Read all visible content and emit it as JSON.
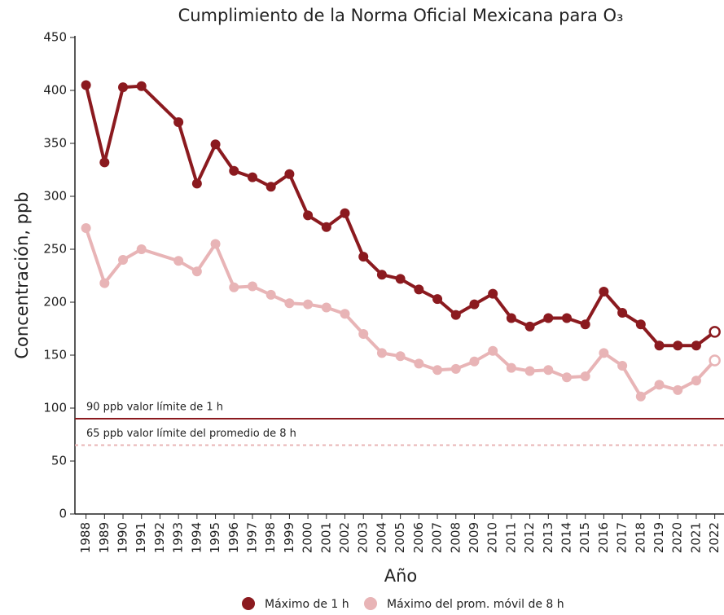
{
  "chart_data": {
    "type": "line",
    "title": "Cumplimiento de la Norma Oficial Mexicana para O₃",
    "x_label": "Año",
    "y_label": "Concentración, ppb",
    "x": [
      1988,
      1989,
      1990,
      1991,
      1993,
      1994,
      1995,
      1996,
      1997,
      1998,
      1999,
      2000,
      2001,
      2002,
      2003,
      2004,
      2005,
      2006,
      2007,
      2008,
      2009,
      2010,
      2011,
      2012,
      2013,
      2014,
      2015,
      2016,
      2017,
      2018,
      2019,
      2020,
      2021,
      2022
    ],
    "series": [
      {
        "name": "Máximo de 1 h",
        "color": "#8b1a1f",
        "values": [
          405,
          332,
          403,
          404,
          370,
          312,
          349,
          324,
          318,
          309,
          321,
          282,
          271,
          284,
          243,
          226,
          222,
          212,
          203,
          188,
          198,
          208,
          185,
          177,
          185,
          185,
          179,
          210,
          190,
          179,
          159,
          159,
          159,
          172
        ]
      },
      {
        "name": "Máximo del prom. móvil de 8 h",
        "color": "#e8b4b6",
        "values": [
          270,
          218,
          240,
          250,
          239,
          229,
          255,
          214,
          215,
          207,
          199,
          198,
          195,
          189,
          170,
          152,
          149,
          142,
          136,
          137,
          144,
          154,
          138,
          135,
          136,
          129,
          130,
          152,
          140,
          111,
          122,
          117,
          126,
          145
        ]
      }
    ],
    "xlim": [
      1987.4,
      2022.5
    ],
    "xticks": [
      1988,
      1989,
      1990,
      1991,
      1992,
      1993,
      1994,
      1995,
      1996,
      1997,
      1998,
      1999,
      2000,
      2001,
      2002,
      2003,
      2004,
      2005,
      2006,
      2007,
      2008,
      2009,
      2010,
      2011,
      2012,
      2013,
      2014,
      2015,
      2016,
      2017,
      2018,
      2019,
      2020,
      2021,
      2022
    ],
    "ylim": [
      0,
      450
    ],
    "yticks": [
      0,
      50,
      100,
      150,
      200,
      250,
      300,
      350,
      400,
      450
    ],
    "reference_lines": [
      {
        "value": 90,
        "label": "90 ppb valor límite de 1 h",
        "color": "#8b1a1f",
        "dashed": false
      },
      {
        "value": 65,
        "label": "65 ppb valor límite del promedio de 8 h",
        "color": "#e8b4b6",
        "dashed": true
      }
    ]
  }
}
